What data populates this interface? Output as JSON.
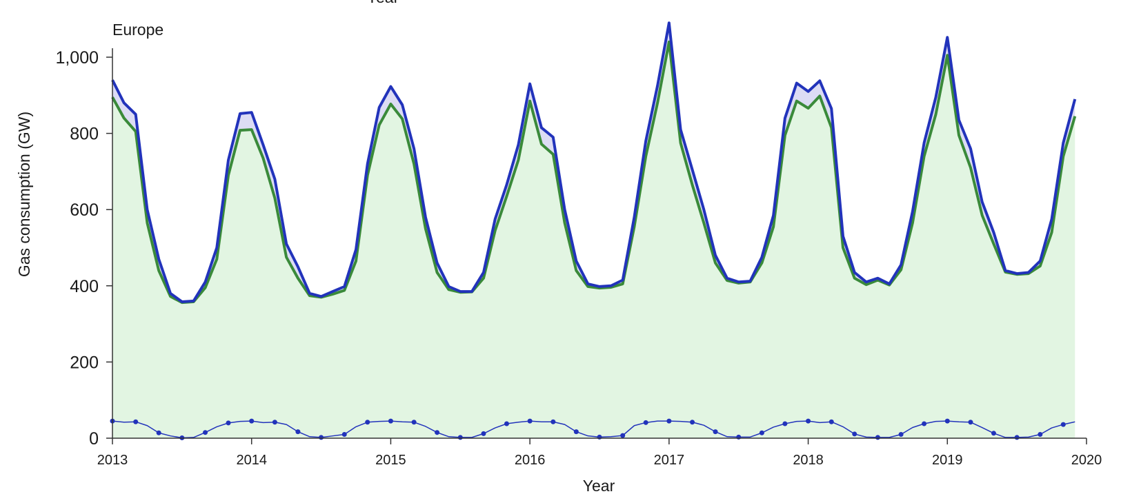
{
  "chart_data": {
    "type": "area",
    "panel_title": "Europe",
    "top_cut_label": "Year",
    "xlabel": "Year",
    "ylabel": "Gas consumption (GW)",
    "xlim": [
      2013,
      2020
    ],
    "ylim": [
      0,
      1100
    ],
    "x_ticks": [
      "2013",
      "2014",
      "2015",
      "2016",
      "2017",
      "2018",
      "2019",
      "2020"
    ],
    "y_ticks": [
      "0",
      "200",
      "400",
      "600",
      "800",
      "1,000"
    ],
    "y_tick_values": [
      0,
      200,
      400,
      600,
      800,
      1000
    ],
    "colors": {
      "total_line": "#2233bb",
      "base_line": "#3a8a3a",
      "base_fill": "#e2f5e2",
      "gap_fill": "#dcdcf4",
      "small_series": "#2233bb"
    },
    "x": [
      2013.0,
      2013.083,
      2013.167,
      2013.25,
      2013.333,
      2013.417,
      2013.5,
      2013.583,
      2013.667,
      2013.75,
      2013.833,
      2013.917,
      2014.0,
      2014.083,
      2014.167,
      2014.25,
      2014.333,
      2014.417,
      2014.5,
      2014.583,
      2014.667,
      2014.75,
      2014.833,
      2014.917,
      2015.0,
      2015.083,
      2015.167,
      2015.25,
      2015.333,
      2015.417,
      2015.5,
      2015.583,
      2015.667,
      2015.75,
      2015.833,
      2015.917,
      2016.0,
      2016.083,
      2016.167,
      2016.25,
      2016.333,
      2016.417,
      2016.5,
      2016.583,
      2016.667,
      2016.75,
      2016.833,
      2016.917,
      2017.0,
      2017.083,
      2017.167,
      2017.25,
      2017.333,
      2017.417,
      2017.5,
      2017.583,
      2017.667,
      2017.75,
      2017.833,
      2017.917,
      2018.0,
      2018.083,
      2018.167,
      2018.25,
      2018.333,
      2018.417,
      2018.5,
      2018.583,
      2018.667,
      2018.75,
      2018.833,
      2018.917,
      2019.0,
      2019.083,
      2019.167,
      2019.25,
      2019.333,
      2019.417,
      2019.5,
      2019.583,
      2019.667,
      2019.75,
      2019.833,
      2019.917
    ],
    "series": [
      {
        "values": [
          940,
          880,
          850,
          600,
          470,
          380,
          358,
          360,
          410,
          500,
          730,
          852,
          855,
          770,
          680,
          510,
          450,
          380,
          372,
          385,
          398,
          495,
          720,
          868,
          923,
          875,
          760,
          580,
          460,
          398,
          385,
          385,
          435,
          575,
          665,
          770,
          930,
          815,
          790,
          600,
          465,
          405,
          398,
          400,
          415,
          580,
          780,
          925,
          1090,
          810,
          705,
          600,
          480,
          420,
          410,
          412,
          475,
          585,
          840,
          932,
          910,
          938,
          865,
          530,
          435,
          410,
          420,
          405,
          455,
          595,
          775,
          895,
          1052,
          835,
          760,
          620,
          540,
          440,
          432,
          435,
          465,
          575,
          775,
          890
        ]
      },
      {
        "values": [
          895,
          840,
          805,
          565,
          440,
          372,
          356,
          358,
          395,
          470,
          690,
          808,
          810,
          735,
          630,
          475,
          420,
          374,
          370,
          378,
          388,
          465,
          690,
          822,
          877,
          838,
          720,
          550,
          435,
          390,
          383,
          384,
          420,
          545,
          635,
          730,
          885,
          772,
          745,
          565,
          440,
          398,
          394,
          396,
          405,
          555,
          740,
          880,
          1040,
          775,
          665,
          565,
          460,
          414,
          407,
          410,
          460,
          555,
          795,
          885,
          866,
          898,
          815,
          500,
          420,
          403,
          415,
          402,
          442,
          565,
          740,
          850,
          1005,
          795,
          710,
          585,
          510,
          436,
          430,
          432,
          452,
          540,
          740,
          845
        ]
      },
      {
        "values": [
          45,
          42,
          43,
          33,
          14,
          6,
          1,
          2,
          15,
          30,
          40,
          44,
          45,
          41,
          42,
          36,
          17,
          4,
          2,
          6,
          10,
          30,
          42,
          44,
          45,
          43,
          42,
          31,
          15,
          4,
          2,
          2,
          12,
          27,
          38,
          42,
          45,
          43,
          43,
          36,
          17,
          6,
          3,
          4,
          7,
          33,
          41,
          45,
          45,
          44,
          42,
          34,
          17,
          4,
          3,
          3,
          14,
          29,
          38,
          44,
          45,
          41,
          43,
          30,
          11,
          3,
          2,
          2,
          10,
          28,
          38,
          44,
          45,
          43,
          42,
          28,
          13,
          2,
          2,
          3,
          10,
          27,
          36,
          43
        ]
      }
    ]
  }
}
